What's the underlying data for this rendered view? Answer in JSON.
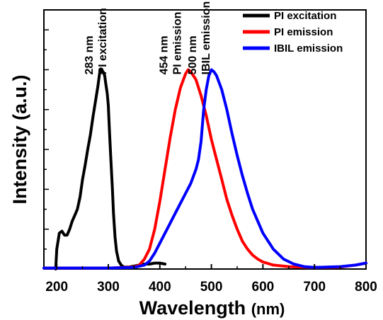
{
  "chart_data": {
    "type": "line",
    "title": "",
    "xlabel": "Wavelength",
    "xlabel_unit": "(nm)",
    "ylabel": "Intensity (a.u.)",
    "xlim": [
      175,
      800
    ],
    "ylim": [
      0,
      1.3
    ],
    "x_ticks": [
      200,
      300,
      400,
      500,
      600,
      700,
      800
    ],
    "y_tick_labels": "none",
    "grid": false,
    "legend_position": "top-right",
    "series": [
      {
        "name": "PI excitation",
        "color": "#000000",
        "points": [
          [
            198,
            0
          ],
          [
            200,
            0.1
          ],
          [
            205,
            0.18
          ],
          [
            210,
            0.19
          ],
          [
            215,
            0.17
          ],
          [
            220,
            0.17
          ],
          [
            225,
            0.2
          ],
          [
            230,
            0.24
          ],
          [
            235,
            0.27
          ],
          [
            240,
            0.3
          ],
          [
            245,
            0.36
          ],
          [
            250,
            0.45
          ],
          [
            255,
            0.52
          ],
          [
            260,
            0.6
          ],
          [
            265,
            0.67
          ],
          [
            270,
            0.76
          ],
          [
            275,
            0.84
          ],
          [
            280,
            0.92
          ],
          [
            283,
            0.98
          ],
          [
            285,
            1.0
          ],
          [
            290,
            0.99
          ],
          [
            293,
            0.97
          ],
          [
            295,
            0.93
          ],
          [
            298,
            0.88
          ],
          [
            300,
            0.82
          ],
          [
            302,
            0.7
          ],
          [
            305,
            0.55
          ],
          [
            308,
            0.4
          ],
          [
            310,
            0.28
          ],
          [
            313,
            0.16
          ],
          [
            316,
            0.09
          ],
          [
            320,
            0.04
          ],
          [
            325,
            0.02
          ],
          [
            330,
            0.01
          ],
          [
            340,
            0.01
          ],
          [
            350,
            0.015
          ],
          [
            360,
            0.02
          ],
          [
            370,
            0.025
          ],
          [
            380,
            0.025
          ],
          [
            390,
            0.03
          ],
          [
            400,
            0.03
          ],
          [
            410,
            0.025
          ]
        ]
      },
      {
        "name": "PI emission",
        "color": "#ff0000",
        "points": [
          [
            175,
            0.005
          ],
          [
            300,
            0.005
          ],
          [
            350,
            0.01
          ],
          [
            360,
            0.02
          ],
          [
            370,
            0.05
          ],
          [
            380,
            0.1
          ],
          [
            390,
            0.2
          ],
          [
            400,
            0.34
          ],
          [
            410,
            0.5
          ],
          [
            420,
            0.66
          ],
          [
            430,
            0.8
          ],
          [
            440,
            0.91
          ],
          [
            450,
            0.98
          ],
          [
            455,
            1.0
          ],
          [
            460,
            0.99
          ],
          [
            470,
            0.95
          ],
          [
            480,
            0.87
          ],
          [
            490,
            0.77
          ],
          [
            500,
            0.65
          ],
          [
            510,
            0.55
          ],
          [
            520,
            0.45
          ],
          [
            530,
            0.35
          ],
          [
            540,
            0.27
          ],
          [
            550,
            0.2
          ],
          [
            560,
            0.14
          ],
          [
            570,
            0.1
          ],
          [
            580,
            0.07
          ],
          [
            590,
            0.05
          ],
          [
            600,
            0.035
          ],
          [
            620,
            0.02
          ],
          [
            650,
            0.012
          ],
          [
            700,
            0.008
          ],
          [
            750,
            0.01
          ],
          [
            780,
            0.02
          ],
          [
            800,
            0.03
          ]
        ]
      },
      {
        "name": "IBIL emission",
        "color": "#0000ff",
        "points": [
          [
            175,
            0.005
          ],
          [
            300,
            0.005
          ],
          [
            350,
            0.008
          ],
          [
            370,
            0.02
          ],
          [
            380,
            0.04
          ],
          [
            390,
            0.08
          ],
          [
            400,
            0.13
          ],
          [
            410,
            0.18
          ],
          [
            420,
            0.23
          ],
          [
            430,
            0.28
          ],
          [
            440,
            0.33
          ],
          [
            450,
            0.38
          ],
          [
            460,
            0.43
          ],
          [
            470,
            0.5
          ],
          [
            475,
            0.55
          ],
          [
            480,
            0.64
          ],
          [
            485,
            0.8
          ],
          [
            490,
            0.9
          ],
          [
            495,
            0.97
          ],
          [
            500,
            1.0
          ],
          [
            505,
            0.99
          ],
          [
            510,
            0.97
          ],
          [
            520,
            0.9
          ],
          [
            530,
            0.8
          ],
          [
            540,
            0.68
          ],
          [
            550,
            0.57
          ],
          [
            560,
            0.47
          ],
          [
            570,
            0.38
          ],
          [
            580,
            0.3
          ],
          [
            590,
            0.24
          ],
          [
            600,
            0.18
          ],
          [
            620,
            0.1
          ],
          [
            640,
            0.05
          ],
          [
            660,
            0.025
          ],
          [
            680,
            0.012
          ],
          [
            700,
            0.008
          ],
          [
            750,
            0.012
          ],
          [
            780,
            0.02
          ],
          [
            800,
            0.03
          ]
        ]
      }
    ],
    "annotations": [
      {
        "name": "annotation-283nm",
        "lines": [
          "283 nm",
          "PI excitation"
        ],
        "x": 270
      },
      {
        "name": "annotation-454nm",
        "lines": [
          "454 nm",
          "PI emission"
        ],
        "x": 415
      },
      {
        "name": "annotation-500nm",
        "lines": [
          "500 nm",
          "IBIL emission"
        ],
        "x": 470
      }
    ]
  }
}
